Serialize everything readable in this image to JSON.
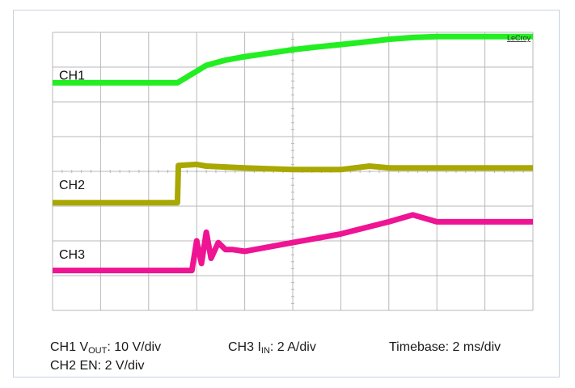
{
  "chart_data": {
    "type": "line",
    "title": "",
    "brand": "LeCroy",
    "x_divisions": 10,
    "y_divisions": 8,
    "grid": true,
    "series": [
      {
        "name": "CH1",
        "color": "#22ee22",
        "x": [
          0,
          2.6,
          2.9,
          3.2,
          3.6,
          4.0,
          4.5,
          5.0,
          5.5,
          6.0,
          6.5,
          7.0,
          7.5,
          8.0,
          8.5,
          9.0,
          10.0
        ],
        "y": [
          6.55,
          6.55,
          6.8,
          7.05,
          7.2,
          7.3,
          7.4,
          7.5,
          7.58,
          7.65,
          7.72,
          7.8,
          7.85,
          7.88,
          7.88,
          7.88,
          7.88
        ]
      },
      {
        "name": "CH2",
        "color": "#a8a800",
        "x": [
          0,
          2.6,
          2.62,
          3.0,
          3.2,
          4.0,
          5.0,
          6.0,
          6.6,
          7.0,
          8.0,
          9.0,
          10.0
        ],
        "y": [
          3.1,
          3.1,
          4.17,
          4.2,
          4.15,
          4.1,
          4.05,
          4.05,
          4.15,
          4.1,
          4.1,
          4.1,
          4.1
        ]
      },
      {
        "name": "CH3",
        "color": "#ee1493",
        "x": [
          0,
          2.9,
          3.0,
          3.1,
          3.2,
          3.3,
          3.45,
          3.6,
          3.75,
          4.0,
          5.0,
          6.0,
          7.0,
          7.5,
          8.0,
          9.0,
          10.0
        ],
        "y": [
          1.15,
          1.15,
          2.0,
          1.35,
          2.25,
          1.5,
          1.95,
          1.75,
          1.75,
          1.7,
          1.95,
          2.2,
          2.55,
          2.75,
          2.55,
          2.55,
          2.55
        ]
      }
    ],
    "channel_labels": [
      {
        "text": "CH1",
        "level": 6.5
      },
      {
        "text": "CH2",
        "level": 3.35
      },
      {
        "text": "CH3",
        "level": 1.35
      }
    ],
    "settings": {
      "ch1_prefix": "CH1 V",
      "ch1_sub": "OUT",
      "ch1_scale": ": 10 V/div",
      "ch3_prefix": "CH3 I",
      "ch3_sub": "IN",
      "ch3_scale": ": 2 A/div",
      "timebase": "Timebase: 2 ms/div",
      "ch2": "CH2 EN: 2 V/div"
    }
  }
}
